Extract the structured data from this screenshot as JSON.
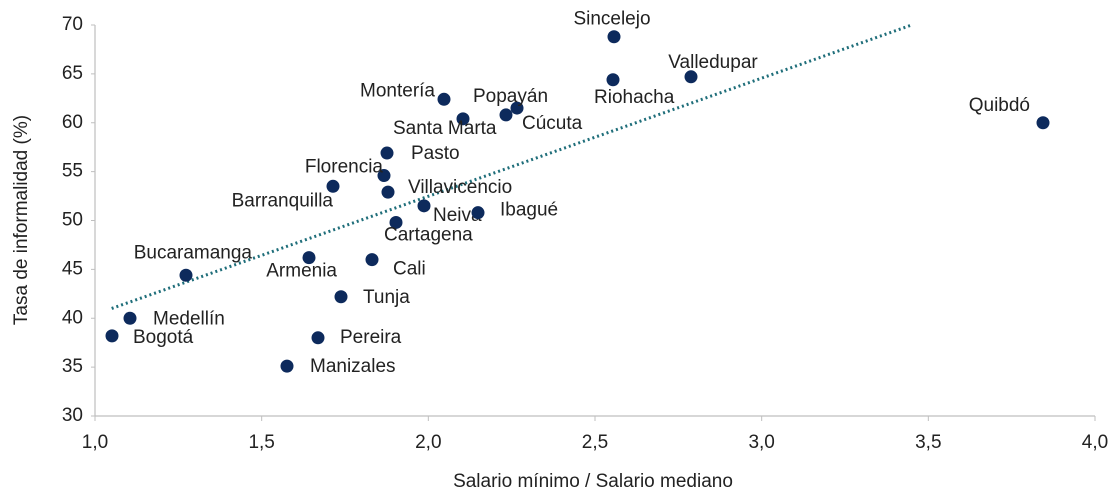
{
  "chart_data": {
    "type": "scatter",
    "x_label": "Salario mínimo / Salario mediano",
    "y_label": "Tasa de informalidad (%)",
    "xlim": [
      1,
      4
    ],
    "ylim": [
      30,
      70
    ],
    "xticks": [
      {
        "value": 1,
        "label": "1,0"
      },
      {
        "value": 1.5,
        "label": "1,5"
      },
      {
        "value": 2,
        "label": "2,0"
      },
      {
        "value": 2.5,
        "label": "2,5"
      },
      {
        "value": 3,
        "label": "3,0"
      },
      {
        "value": 3.5,
        "label": "3,5"
      },
      {
        "value": 4,
        "label": "4,0"
      }
    ],
    "yticks": [
      30,
      35,
      40,
      45,
      50,
      55,
      60,
      65,
      70
    ],
    "color": "#0d2a5c",
    "trendline": {
      "color": "#1f6e7a",
      "x": [
        1.05,
        3.45
      ],
      "y": [
        41.0,
        70
      ]
    },
    "points": {
      "labels": [
        "Sincelejo",
        "Valledupar",
        "Riohacha",
        "Quibdó",
        "Montería",
        "Popayán",
        "Cúcuta",
        "Santa Marta",
        "Pasto",
        "Florencia",
        "Barranquilla",
        "Villavicencio",
        "Neiva",
        "Ibagué",
        "Cartagena",
        "Bucaramanga",
        "Armenia",
        "Cali",
        "Tunja",
        "Medellín",
        "Bogotá",
        "Pereira",
        "Manizales"
      ],
      "x": [
        2.557,
        2.788,
        2.554,
        3.844,
        2.047,
        2.266,
        2.233,
        2.104,
        1.876,
        1.867,
        1.714,
        1.879,
        1.987,
        2.149,
        1.903,
        1.273,
        1.642,
        1.831,
        1.738,
        1.105,
        1.051,
        1.669,
        1.576
      ],
      "y": [
        68.8,
        64.7,
        64.4,
        60.0,
        62.4,
        61.5,
        60.8,
        60.4,
        56.9,
        54.6,
        53.5,
        52.9,
        51.5,
        50.8,
        49.8,
        44.4,
        46.2,
        46.0,
        42.2,
        40.0,
        38.2,
        38.0,
        35.1
      ]
    }
  }
}
